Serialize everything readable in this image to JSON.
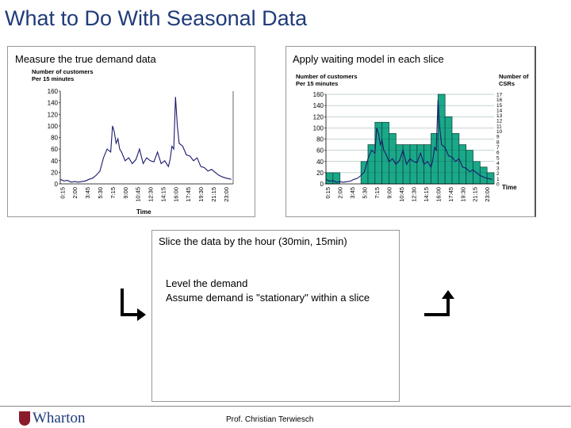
{
  "slide": {
    "title": "What to Do With Seasonal Data",
    "footer": "Prof. Christian Terwiesch",
    "logo_text": "Wharton"
  },
  "left_panel": {
    "label": "Measure the true demand data"
  },
  "right_panel": {
    "label": "Apply waiting model in each slice"
  },
  "slice_box": {
    "heading": "Slice the data by the hour (30min, 15min)",
    "line1": "Level the demand",
    "line2": "Assume demand is \"stationary\" within a slice"
  },
  "colors": {
    "title": "#1f3b7a",
    "line": "#1a1a6e",
    "bar_fill": "#1aa889",
    "bar_edge": "#0d4d3f",
    "logo": "#8a1c2b"
  },
  "chart_data": [
    {
      "type": "line",
      "ylabel": "Number of customers Per 15 minutes",
      "ylabel_lines": [
        "Number of customers",
        "Per 15 minutes"
      ],
      "xlabel": "Time",
      "ylim": [
        0,
        160
      ],
      "yticks": [
        0,
        20,
        40,
        60,
        80,
        100,
        120,
        140,
        160
      ],
      "xticks": [
        "0:15",
        "2:00",
        "3:45",
        "5:30",
        "7:15",
        "9:00",
        "10:45",
        "12:30",
        "14:15",
        "16:00",
        "17:45",
        "19:30",
        "21:15",
        "23:00"
      ],
      "x_hours": [
        0.25,
        2.0,
        3.75,
        5.5,
        7.25,
        9.0,
        10.75,
        12.5,
        14.25,
        16.0,
        17.75,
        19.5,
        21.25,
        23.0
      ],
      "series": [
        {
          "x": [
            0,
            0.5,
            1,
            1.5,
            2,
            2.5,
            3,
            3.5,
            4,
            4.5,
            5,
            5.5,
            6,
            6.5,
            7,
            7.25,
            7.5,
            7.75,
            8,
            8.25,
            8.5,
            9,
            9.5,
            10,
            10.5,
            11,
            11.5,
            12,
            12.5,
            13,
            13.5,
            14,
            14.5,
            15,
            15.25,
            15.5,
            15.75,
            16,
            16.25,
            16.5,
            17,
            17.5,
            18,
            18.5,
            19,
            19.5,
            20,
            20.5,
            21,
            21.5,
            22,
            22.5,
            23,
            23.75
          ],
          "y": [
            8,
            5,
            6,
            3,
            4,
            3,
            4,
            5,
            8,
            10,
            15,
            22,
            45,
            60,
            55,
            100,
            90,
            70,
            78,
            60,
            55,
            40,
            45,
            35,
            42,
            60,
            35,
            45,
            40,
            38,
            55,
            35,
            40,
            30,
            42,
            65,
            60,
            150,
            100,
            70,
            65,
            50,
            48,
            40,
            45,
            30,
            28,
            22,
            25,
            20,
            15,
            12,
            10,
            8
          ]
        }
      ]
    },
    {
      "type": "bar",
      "ylabel": "Number of customers Per 15 minutes",
      "ylabel_lines": [
        "Number of customers",
        "Per 15 minutes"
      ],
      "y2label": "Number of CSRs",
      "y2label_lines": [
        "Number of",
        "CSRs"
      ],
      "xlabel": "Time",
      "ylim": [
        0,
        160
      ],
      "yticks": [
        0,
        20,
        40,
        60,
        80,
        100,
        120,
        140,
        160
      ],
      "y2ticks": [
        0,
        1,
        2,
        3,
        4,
        5,
        6,
        7,
        8,
        9,
        10,
        11,
        12,
        13,
        14,
        15,
        16,
        17
      ],
      "xticks": [
        "0:15",
        "2:00",
        "3:45",
        "5:30",
        "7:15",
        "9:00",
        "10:45",
        "12:30",
        "14:15",
        "16:00",
        "17:45",
        "19:30",
        "21:15",
        "23:00"
      ],
      "x_hours": [
        0.25,
        2.0,
        3.75,
        5.5,
        7.25,
        9.0,
        10.75,
        12.5,
        14.25,
        16.0,
        17.75,
        19.5,
        21.25,
        23.0
      ],
      "categories": [
        "0",
        "1",
        "2",
        "3",
        "4",
        "5",
        "6",
        "7",
        "8",
        "9",
        "10",
        "11",
        "12",
        "13",
        "14",
        "15",
        "16",
        "17",
        "18",
        "19",
        "20",
        "21",
        "22",
        "23"
      ],
      "values": [
        20,
        20,
        0,
        0,
        0,
        40,
        70,
        110,
        110,
        90,
        70,
        70,
        70,
        70,
        70,
        90,
        160,
        120,
        90,
        70,
        60,
        40,
        30,
        20
      ],
      "overlay_series": [
        {
          "x": [
            0,
            0.5,
            1,
            1.5,
            2,
            2.5,
            3,
            3.5,
            4,
            4.5,
            5,
            5.5,
            6,
            6.5,
            7,
            7.25,
            7.5,
            7.75,
            8,
            8.25,
            8.5,
            9,
            9.5,
            10,
            10.5,
            11,
            11.5,
            12,
            12.5,
            13,
            13.5,
            14,
            14.5,
            15,
            15.25,
            15.5,
            15.75,
            16,
            16.25,
            16.5,
            17,
            17.5,
            18,
            18.5,
            19,
            19.5,
            20,
            20.5,
            21,
            21.5,
            22,
            22.5,
            23,
            23.75
          ],
          "y": [
            8,
            5,
            6,
            3,
            4,
            3,
            4,
            5,
            8,
            10,
            15,
            22,
            45,
            60,
            55,
            100,
            90,
            70,
            78,
            60,
            55,
            40,
            45,
            35,
            42,
            60,
            35,
            45,
            40,
            38,
            55,
            35,
            40,
            30,
            42,
            65,
            60,
            150,
            100,
            70,
            65,
            50,
            48,
            40,
            45,
            30,
            28,
            22,
            25,
            20,
            15,
            12,
            10,
            8
          ]
        }
      ]
    }
  ]
}
